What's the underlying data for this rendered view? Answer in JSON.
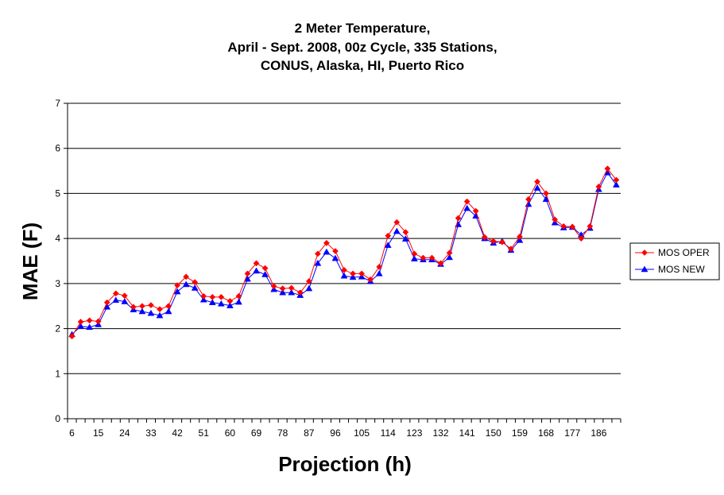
{
  "chart_data": {
    "type": "line",
    "title_lines": [
      "2 Meter Temperature,",
      "April - Sept. 2008, 00z Cycle, 335 Stations,",
      "CONUS, Alaska, HI, Puerto Rico"
    ],
    "xlabel": "Projection (h)",
    "ylabel": "MAE (F)",
    "ylim": [
      0,
      7
    ],
    "yticks": [
      "0",
      "1",
      "2",
      "3",
      "4",
      "5",
      "6",
      "7"
    ],
    "xtick_labels": [
      "6",
      "15",
      "24",
      "33",
      "42",
      "51",
      "60",
      "69",
      "78",
      "87",
      "96",
      "105",
      "114",
      "123",
      "132",
      "141",
      "150",
      "159",
      "168",
      "177",
      "186"
    ],
    "grid": true,
    "legend_position": "right",
    "x": [
      6,
      9,
      12,
      15,
      18,
      21,
      24,
      27,
      30,
      33,
      36,
      39,
      42,
      45,
      48,
      51,
      54,
      57,
      60,
      63,
      66,
      69,
      72,
      75,
      78,
      81,
      84,
      87,
      90,
      93,
      96,
      99,
      102,
      105,
      108,
      111,
      114,
      117,
      120,
      123,
      126,
      129,
      132,
      135,
      138,
      141,
      144,
      147,
      150,
      153,
      156,
      159,
      162,
      165,
      168,
      171,
      174,
      177,
      180,
      183,
      186,
      189,
      192
    ],
    "series": [
      {
        "name": "MOS OPER",
        "color": "#ff0000",
        "marker": "diamond",
        "values": [
          1.83,
          2.15,
          2.18,
          2.16,
          2.58,
          2.78,
          2.73,
          2.48,
          2.5,
          2.52,
          2.43,
          2.5,
          2.96,
          3.15,
          3.03,
          2.72,
          2.7,
          2.7,
          2.61,
          2.72,
          3.22,
          3.45,
          3.34,
          2.94,
          2.89,
          2.9,
          2.8,
          3.05,
          3.66,
          3.9,
          3.72,
          3.3,
          3.22,
          3.22,
          3.09,
          3.37,
          4.06,
          4.36,
          4.14,
          3.66,
          3.57,
          3.57,
          3.45,
          3.68,
          4.45,
          4.82,
          4.61,
          4.03,
          3.94,
          3.92,
          3.77,
          4.04,
          4.87,
          5.26,
          5.0,
          4.42,
          4.27,
          4.26,
          4.0,
          4.27,
          5.15,
          5.55,
          5.3
        ]
      },
      {
        "name": "MOS NEW",
        "color": "#0000ff",
        "marker": "triangle",
        "values": [
          1.87,
          2.05,
          2.03,
          2.09,
          2.48,
          2.63,
          2.6,
          2.42,
          2.38,
          2.34,
          2.29,
          2.38,
          2.82,
          2.98,
          2.9,
          2.64,
          2.58,
          2.55,
          2.51,
          2.59,
          3.1,
          3.28,
          3.2,
          2.87,
          2.8,
          2.8,
          2.74,
          2.89,
          3.45,
          3.7,
          3.56,
          3.17,
          3.14,
          3.15,
          3.05,
          3.22,
          3.85,
          4.16,
          3.99,
          3.55,
          3.53,
          3.53,
          3.43,
          3.58,
          4.31,
          4.67,
          4.5,
          4.0,
          3.9,
          3.94,
          3.74,
          3.96,
          4.76,
          5.12,
          4.87,
          4.35,
          4.24,
          4.25,
          4.08,
          4.23,
          5.09,
          5.46,
          5.19
        ]
      }
    ]
  }
}
